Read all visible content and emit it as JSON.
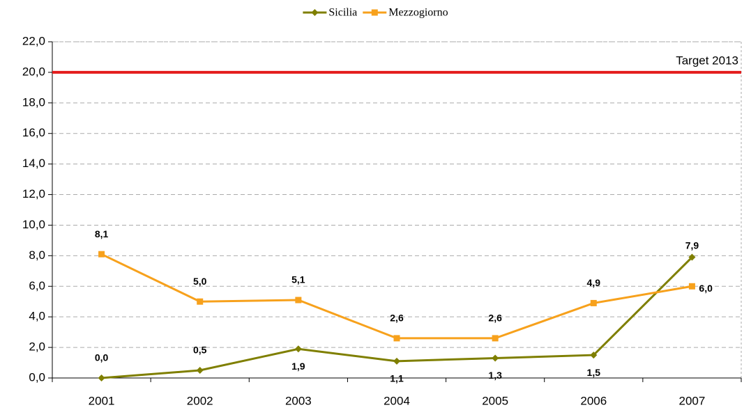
{
  "chart_data": {
    "type": "line",
    "categories": [
      "2001",
      "2002",
      "2003",
      "2004",
      "2005",
      "2006",
      "2007"
    ],
    "series": [
      {
        "name": "Sicilia",
        "color": "#7f7f00",
        "marker": "diamond",
        "values": [
          0.0,
          0.5,
          1.9,
          1.1,
          1.3,
          1.5,
          7.9
        ],
        "value_labels": [
          "0,0",
          "0,5",
          "1,9",
          "1,1",
          "1,3",
          "1,5",
          "7,9"
        ]
      },
      {
        "name": "Mezzogiorno",
        "color": "#f7a11c",
        "marker": "square",
        "values": [
          8.1,
          5.0,
          5.1,
          2.6,
          2.6,
          4.9,
          6.0
        ],
        "value_labels": [
          "8,1",
          "5,0",
          "5,1",
          "2,6",
          "2,6",
          "4,9",
          "6,0"
        ]
      }
    ],
    "ylim": [
      0,
      22
    ],
    "yticks": [
      {
        "value": 0,
        "label": "0,0"
      },
      {
        "value": 2,
        "label": "2,0"
      },
      {
        "value": 4,
        "label": "4,0"
      },
      {
        "value": 6,
        "label": "6,0"
      },
      {
        "value": 8,
        "label": "8,0"
      },
      {
        "value": 10,
        "label": "10,0"
      },
      {
        "value": 12,
        "label": "12,0"
      },
      {
        "value": 14,
        "label": "14,0"
      },
      {
        "value": 16,
        "label": "16,0"
      },
      {
        "value": 18,
        "label": "18,0"
      },
      {
        "value": 20,
        "label": "20,0"
      },
      {
        "value": 22,
        "label": "22,0"
      }
    ],
    "grid": true,
    "legend": "top",
    "annotations": [
      {
        "text": "Target 2013",
        "value": 20,
        "color": "#e41c1c"
      }
    ]
  }
}
